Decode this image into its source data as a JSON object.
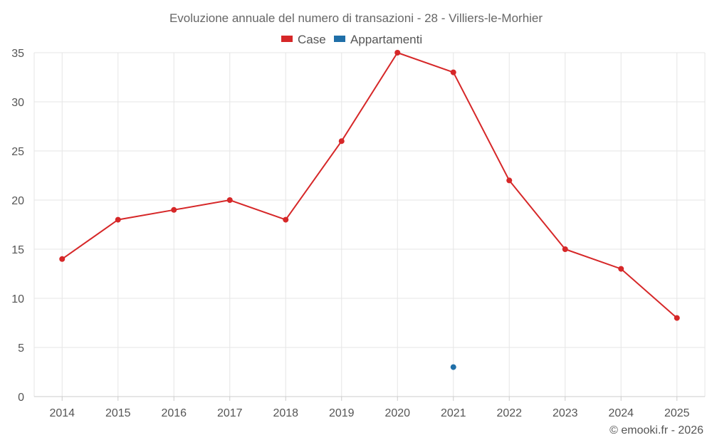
{
  "chart_data": {
    "type": "line",
    "title": "Evoluzione annuale del numero di transazioni - 28 - Villiers-le-Morhier",
    "categories": [
      "2014",
      "2015",
      "2016",
      "2017",
      "2018",
      "2019",
      "2020",
      "2021",
      "2022",
      "2023",
      "2024",
      "2025"
    ],
    "series": [
      {
        "name": "Case",
        "color": "#d62728",
        "values": [
          14,
          18,
          19,
          20,
          18,
          26,
          35,
          33,
          22,
          15,
          13,
          8
        ]
      },
      {
        "name": "Appartamenti",
        "color": "#1f6fa8",
        "values": [
          null,
          null,
          null,
          null,
          null,
          null,
          null,
          3,
          null,
          null,
          null,
          null
        ]
      }
    ],
    "ylim": [
      0,
      35
    ],
    "yticks": [
      0,
      5,
      10,
      15,
      20,
      25,
      30,
      35
    ],
    "xlabel": "",
    "ylabel": "",
    "grid": true,
    "legend_position": "top-center"
  },
  "credit": "© emooki.fr - 2026"
}
